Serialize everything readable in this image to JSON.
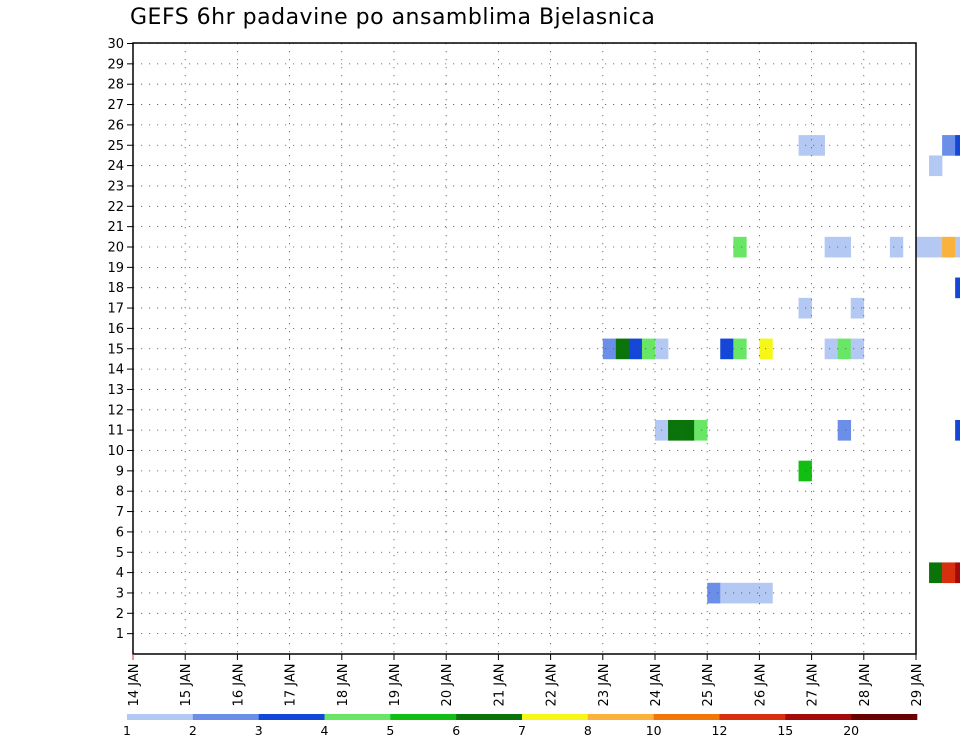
{
  "chart_data": {
    "type": "heatmap",
    "title": "GEFS 6hr padavine po ansamblima Bjelasnica",
    "xlabel": "",
    "ylabel": "",
    "y_ticks": [
      1,
      2,
      3,
      4,
      5,
      6,
      7,
      8,
      9,
      10,
      11,
      12,
      13,
      14,
      15,
      16,
      17,
      18,
      19,
      20,
      21,
      22,
      23,
      24,
      25,
      26,
      27,
      28,
      29,
      30
    ],
    "ylim": [
      0,
      30
    ],
    "x_ticks": [
      "14 JAN",
      "15 JAN",
      "16 JAN",
      "17 JAN",
      "18 JAN",
      "19 JAN",
      "20 JAN",
      "21 JAN",
      "22 JAN",
      "23 JAN",
      "24 JAN",
      "25 JAN",
      "26 JAN",
      "27 JAN",
      "28 JAN",
      "29 JAN"
    ],
    "xlim_days": [
      14,
      29
    ],
    "time_step_hours": 6,
    "grid": true,
    "legend": {
      "position": "bottom",
      "breaks": [
        "1",
        "2",
        "3",
        "4",
        "5",
        "6",
        "7",
        "8",
        "10",
        "12",
        "15",
        "20"
      ],
      "colors": [
        "#b4c8f4",
        "#6b8ee8",
        "#1447d8",
        "#6ae666",
        "#12be12",
        "#0a740a",
        "#f6f618",
        "#fab23c",
        "#f2760a",
        "#d8300e",
        "#a40a0a",
        "#6a0000"
      ]
    },
    "cells": [
      {
        "member": 30,
        "cols": [
          [
            72,
            0
          ],
          [
            78,
            3
          ],
          [
            94,
            5
          ],
          [
            95,
            3
          ],
          [
            96,
            0
          ],
          [
            97,
            1
          ],
          [
            133,
            0
          ],
          [
            134,
            0
          ]
        ]
      },
      {
        "member": 29,
        "cols": [
          [
            78,
            4
          ],
          [
            79,
            1
          ]
        ]
      },
      {
        "member": 28,
        "cols": [
          [
            72,
            2
          ],
          [
            73,
            0
          ],
          [
            77,
            5
          ],
          [
            78,
            7
          ],
          [
            86,
            2
          ],
          [
            87,
            2
          ],
          [
            90,
            1
          ],
          [
            91,
            8
          ],
          [
            92,
            5
          ],
          [
            93,
            5
          ],
          [
            102,
            5
          ],
          [
            105,
            0
          ],
          [
            106,
            2
          ],
          [
            113,
            3
          ],
          [
            114,
            3
          ],
          [
            115,
            6
          ]
        ]
      },
      {
        "member": 27,
        "cols": [
          [
            96,
            0
          ],
          [
            97,
            1
          ],
          [
            98,
            2
          ],
          [
            99,
            0
          ],
          [
            100,
            0
          ],
          [
            101,
            0
          ],
          [
            111,
            3
          ],
          [
            112,
            3
          ],
          [
            115,
            0
          ],
          [
            116,
            1
          ],
          [
            117,
            1
          ]
        ]
      },
      {
        "member": 26,
        "cols": [
          [
            78,
            7
          ],
          [
            79,
            6
          ],
          [
            80,
            5
          ],
          [
            81,
            0
          ],
          [
            82,
            0
          ],
          [
            96,
            0
          ],
          [
            97,
            0
          ],
          [
            98,
            2
          ],
          [
            99,
            1
          ],
          [
            100,
            1
          ],
          [
            101,
            6
          ],
          [
            102,
            1
          ],
          [
            103,
            0
          ]
        ]
      },
      {
        "member": 25,
        "cols": [
          [
            51,
            0
          ],
          [
            52,
            0
          ],
          [
            62,
            1
          ],
          [
            63,
            2
          ],
          [
            74,
            0
          ],
          [
            75,
            2
          ],
          [
            76,
            1
          ],
          [
            89,
            3
          ],
          [
            90,
            2
          ],
          [
            91,
            0
          ],
          [
            100,
            0
          ]
        ]
      },
      {
        "member": 24,
        "cols": [
          [
            61,
            0
          ],
          [
            72,
            0
          ],
          [
            92,
            2
          ],
          [
            101,
            1
          ],
          [
            102,
            2
          ],
          [
            103,
            4
          ],
          [
            104,
            0
          ]
        ]
      },
      {
        "member": 23,
        "cols": [
          [
            81,
            1
          ],
          [
            82,
            1
          ],
          [
            99,
            1
          ],
          [
            100,
            4
          ],
          [
            101,
            5
          ],
          [
            102,
            2
          ],
          [
            113,
            0
          ]
        ]
      },
      {
        "member": 22,
        "cols": []
      },
      {
        "member": 21,
        "cols": [
          [
            101,
            0
          ]
        ]
      },
      {
        "member": 20,
        "cols": [
          [
            46,
            3
          ],
          [
            53,
            0
          ],
          [
            54,
            0
          ],
          [
            58,
            0
          ],
          [
            60,
            0
          ],
          [
            61,
            0
          ],
          [
            62,
            7
          ],
          [
            63,
            0
          ],
          [
            64,
            0
          ],
          [
            66,
            4
          ],
          [
            67,
            2
          ],
          [
            68,
            5
          ],
          [
            70,
            2
          ],
          [
            71,
            0
          ],
          [
            74,
            5
          ],
          [
            75,
            1
          ],
          [
            76,
            0
          ],
          [
            77,
            1
          ],
          [
            78,
            1
          ],
          [
            79,
            3
          ],
          [
            80,
            0
          ],
          [
            81,
            0
          ],
          [
            84,
            0
          ],
          [
            85,
            0
          ],
          [
            86,
            0
          ],
          [
            87,
            2
          ],
          [
            91,
            0
          ],
          [
            92,
            0
          ],
          [
            96,
            0
          ],
          [
            97,
            0
          ],
          [
            100,
            0
          ],
          [
            104,
            0
          ],
          [
            105,
            0
          ]
        ]
      },
      {
        "member": 19,
        "cols": [
          [
            94,
            0
          ],
          [
            95,
            1
          ],
          [
            125,
            4
          ]
        ]
      },
      {
        "member": 18,
        "cols": [
          [
            63,
            2
          ],
          [
            64,
            7
          ],
          [
            65,
            7
          ],
          [
            67,
            4
          ],
          [
            88,
            1
          ],
          [
            89,
            7
          ],
          [
            90,
            4
          ],
          [
            95,
            5
          ],
          [
            97,
            0
          ],
          [
            98,
            0
          ],
          [
            99,
            0
          ],
          [
            100,
            1
          ],
          [
            101,
            1
          ],
          [
            102,
            3
          ]
        ]
      },
      {
        "member": 17,
        "cols": [
          [
            51,
            0
          ],
          [
            55,
            0
          ],
          [
            82,
            0
          ],
          [
            90,
            3
          ],
          [
            91,
            1
          ]
        ]
      },
      {
        "member": 16,
        "cols": [
          [
            80,
            0
          ],
          [
            81,
            5
          ],
          [
            82,
            0
          ],
          [
            94,
            3
          ],
          [
            95,
            1
          ]
        ]
      },
      {
        "member": 15,
        "cols": [
          [
            36,
            1
          ],
          [
            37,
            5
          ],
          [
            38,
            2
          ],
          [
            39,
            3
          ],
          [
            40,
            0
          ],
          [
            45,
            2
          ],
          [
            46,
            3
          ],
          [
            48,
            6
          ],
          [
            53,
            0
          ],
          [
            54,
            3
          ],
          [
            55,
            0
          ],
          [
            69,
            2
          ],
          [
            103,
            0
          ],
          [
            104,
            3
          ],
          [
            105,
            1
          ],
          [
            108,
            0
          ],
          [
            109,
            2
          ],
          [
            110,
            2
          ],
          [
            111,
            2
          ]
        ]
      },
      {
        "member": 14,
        "cols": [
          [
            64,
            0
          ],
          [
            65,
            0
          ],
          [
            66,
            0
          ],
          [
            67,
            0
          ],
          [
            69,
            2
          ],
          [
            70,
            2
          ],
          [
            71,
            2
          ],
          [
            72,
            0
          ],
          [
            73,
            1
          ],
          [
            74,
            0
          ],
          [
            83,
            2
          ],
          [
            84,
            2
          ],
          [
            85,
            0
          ],
          [
            86,
            0
          ],
          [
            87,
            2
          ],
          [
            91,
            0
          ],
          [
            92,
            0
          ],
          [
            93,
            0
          ],
          [
            106,
            0
          ]
        ]
      },
      {
        "member": 13,
        "cols": [
          [
            70,
            1
          ],
          [
            71,
            0
          ],
          [
            72,
            0
          ],
          [
            91,
            1
          ],
          [
            92,
            2
          ],
          [
            93,
            6
          ],
          [
            94,
            0
          ],
          [
            95,
            4
          ],
          [
            96,
            2
          ],
          [
            97,
            0
          ],
          [
            106,
            0
          ],
          [
            113,
            0
          ],
          [
            114,
            2
          ],
          [
            115,
            10
          ]
        ]
      },
      {
        "member": 12,
        "cols": [
          [
            67,
            1
          ],
          [
            68,
            1
          ],
          [
            88,
            0
          ],
          [
            92,
            0
          ],
          [
            93,
            8
          ],
          [
            94,
            7
          ],
          [
            95,
            5
          ],
          [
            96,
            1
          ],
          [
            99,
            1
          ],
          [
            100,
            3
          ],
          [
            101,
            0
          ],
          [
            102,
            2
          ],
          [
            103,
            1
          ],
          [
            104,
            0
          ],
          [
            106,
            0
          ],
          [
            108,
            0
          ],
          [
            109,
            2
          ],
          [
            110,
            1
          ],
          [
            111,
            0
          ],
          [
            112,
            5
          ],
          [
            113,
            1
          ]
        ]
      },
      {
        "member": 11,
        "cols": [
          [
            40,
            0
          ],
          [
            41,
            5
          ],
          [
            42,
            5
          ],
          [
            43,
            3
          ],
          [
            54,
            1
          ],
          [
            63,
            2
          ],
          [
            64,
            6
          ],
          [
            65,
            0
          ],
          [
            95,
            3
          ],
          [
            96,
            1
          ],
          [
            97,
            0
          ],
          [
            98,
            0
          ],
          [
            103,
            0
          ],
          [
            104,
            1
          ],
          [
            105,
            1
          ],
          [
            106,
            0
          ],
          [
            108,
            0
          ]
        ]
      },
      {
        "member": 10,
        "cols": [
          [
            78,
            0
          ],
          [
            79,
            4
          ],
          [
            80,
            7
          ],
          [
            81,
            6
          ],
          [
            82,
            7
          ],
          [
            83,
            1
          ],
          [
            84,
            1
          ]
        ]
      },
      {
        "member": 9,
        "cols": [
          [
            51,
            4
          ],
          [
            65,
            4
          ],
          [
            66,
            0
          ],
          [
            67,
            0
          ],
          [
            88,
            3
          ],
          [
            89,
            1
          ]
        ]
      },
      {
        "member": 8,
        "cols": [
          [
            75,
            0
          ],
          [
            104,
            3
          ],
          [
            105,
            1
          ]
        ]
      },
      {
        "member": 7,
        "cols": [
          [
            67,
            0
          ]
        ]
      },
      {
        "member": 6,
        "cols": [
          [
            75,
            0
          ],
          [
            76,
            2
          ],
          [
            77,
            6
          ],
          [
            78,
            6
          ],
          [
            79,
            4
          ],
          [
            80,
            5
          ],
          [
            81,
            5
          ],
          [
            82,
            2
          ],
          [
            83,
            5
          ],
          [
            84,
            5
          ],
          [
            90,
            0
          ],
          [
            91,
            2
          ],
          [
            92,
            0
          ],
          [
            97,
            2
          ],
          [
            98,
            0
          ],
          [
            99,
            0
          ],
          [
            100,
            0
          ],
          [
            103,
            1
          ],
          [
            104,
            0
          ],
          [
            106,
            0
          ]
        ]
      },
      {
        "member": 5,
        "cols": [
          [
            65,
            1
          ],
          [
            83,
            0
          ],
          [
            84,
            0
          ],
          [
            86,
            2
          ]
        ]
      },
      {
        "member": 4,
        "cols": [
          [
            61,
            5
          ],
          [
            62,
            9
          ],
          [
            63,
            10
          ],
          [
            64,
            10
          ],
          [
            65,
            3
          ],
          [
            83,
            0
          ],
          [
            84,
            0
          ],
          [
            86,
            1
          ]
        ]
      },
      {
        "member": 3,
        "cols": [
          [
            44,
            1
          ],
          [
            45,
            0
          ],
          [
            46,
            0
          ],
          [
            47,
            0
          ],
          [
            48,
            0
          ],
          [
            68,
            0
          ],
          [
            79,
            1
          ],
          [
            108,
            2
          ],
          [
            109,
            0
          ],
          [
            110,
            8
          ],
          [
            111,
            0
          ],
          [
            112,
            0
          ],
          [
            113,
            0
          ],
          [
            114,
            0
          ],
          [
            115,
            1
          ]
        ]
      },
      {
        "member": 2,
        "cols": []
      },
      {
        "member": 1,
        "cols": [
          [
            80,
            5
          ],
          [
            81,
            4
          ],
          [
            82,
            7
          ],
          [
            90,
            0
          ]
        ]
      },
      {
        "member": 0,
        "cols": [
          [
            65,
            0
          ],
          [
            113,
            2
          ],
          [
            114,
            0
          ],
          [
            115,
            2
          ]
        ]
      }
    ]
  }
}
